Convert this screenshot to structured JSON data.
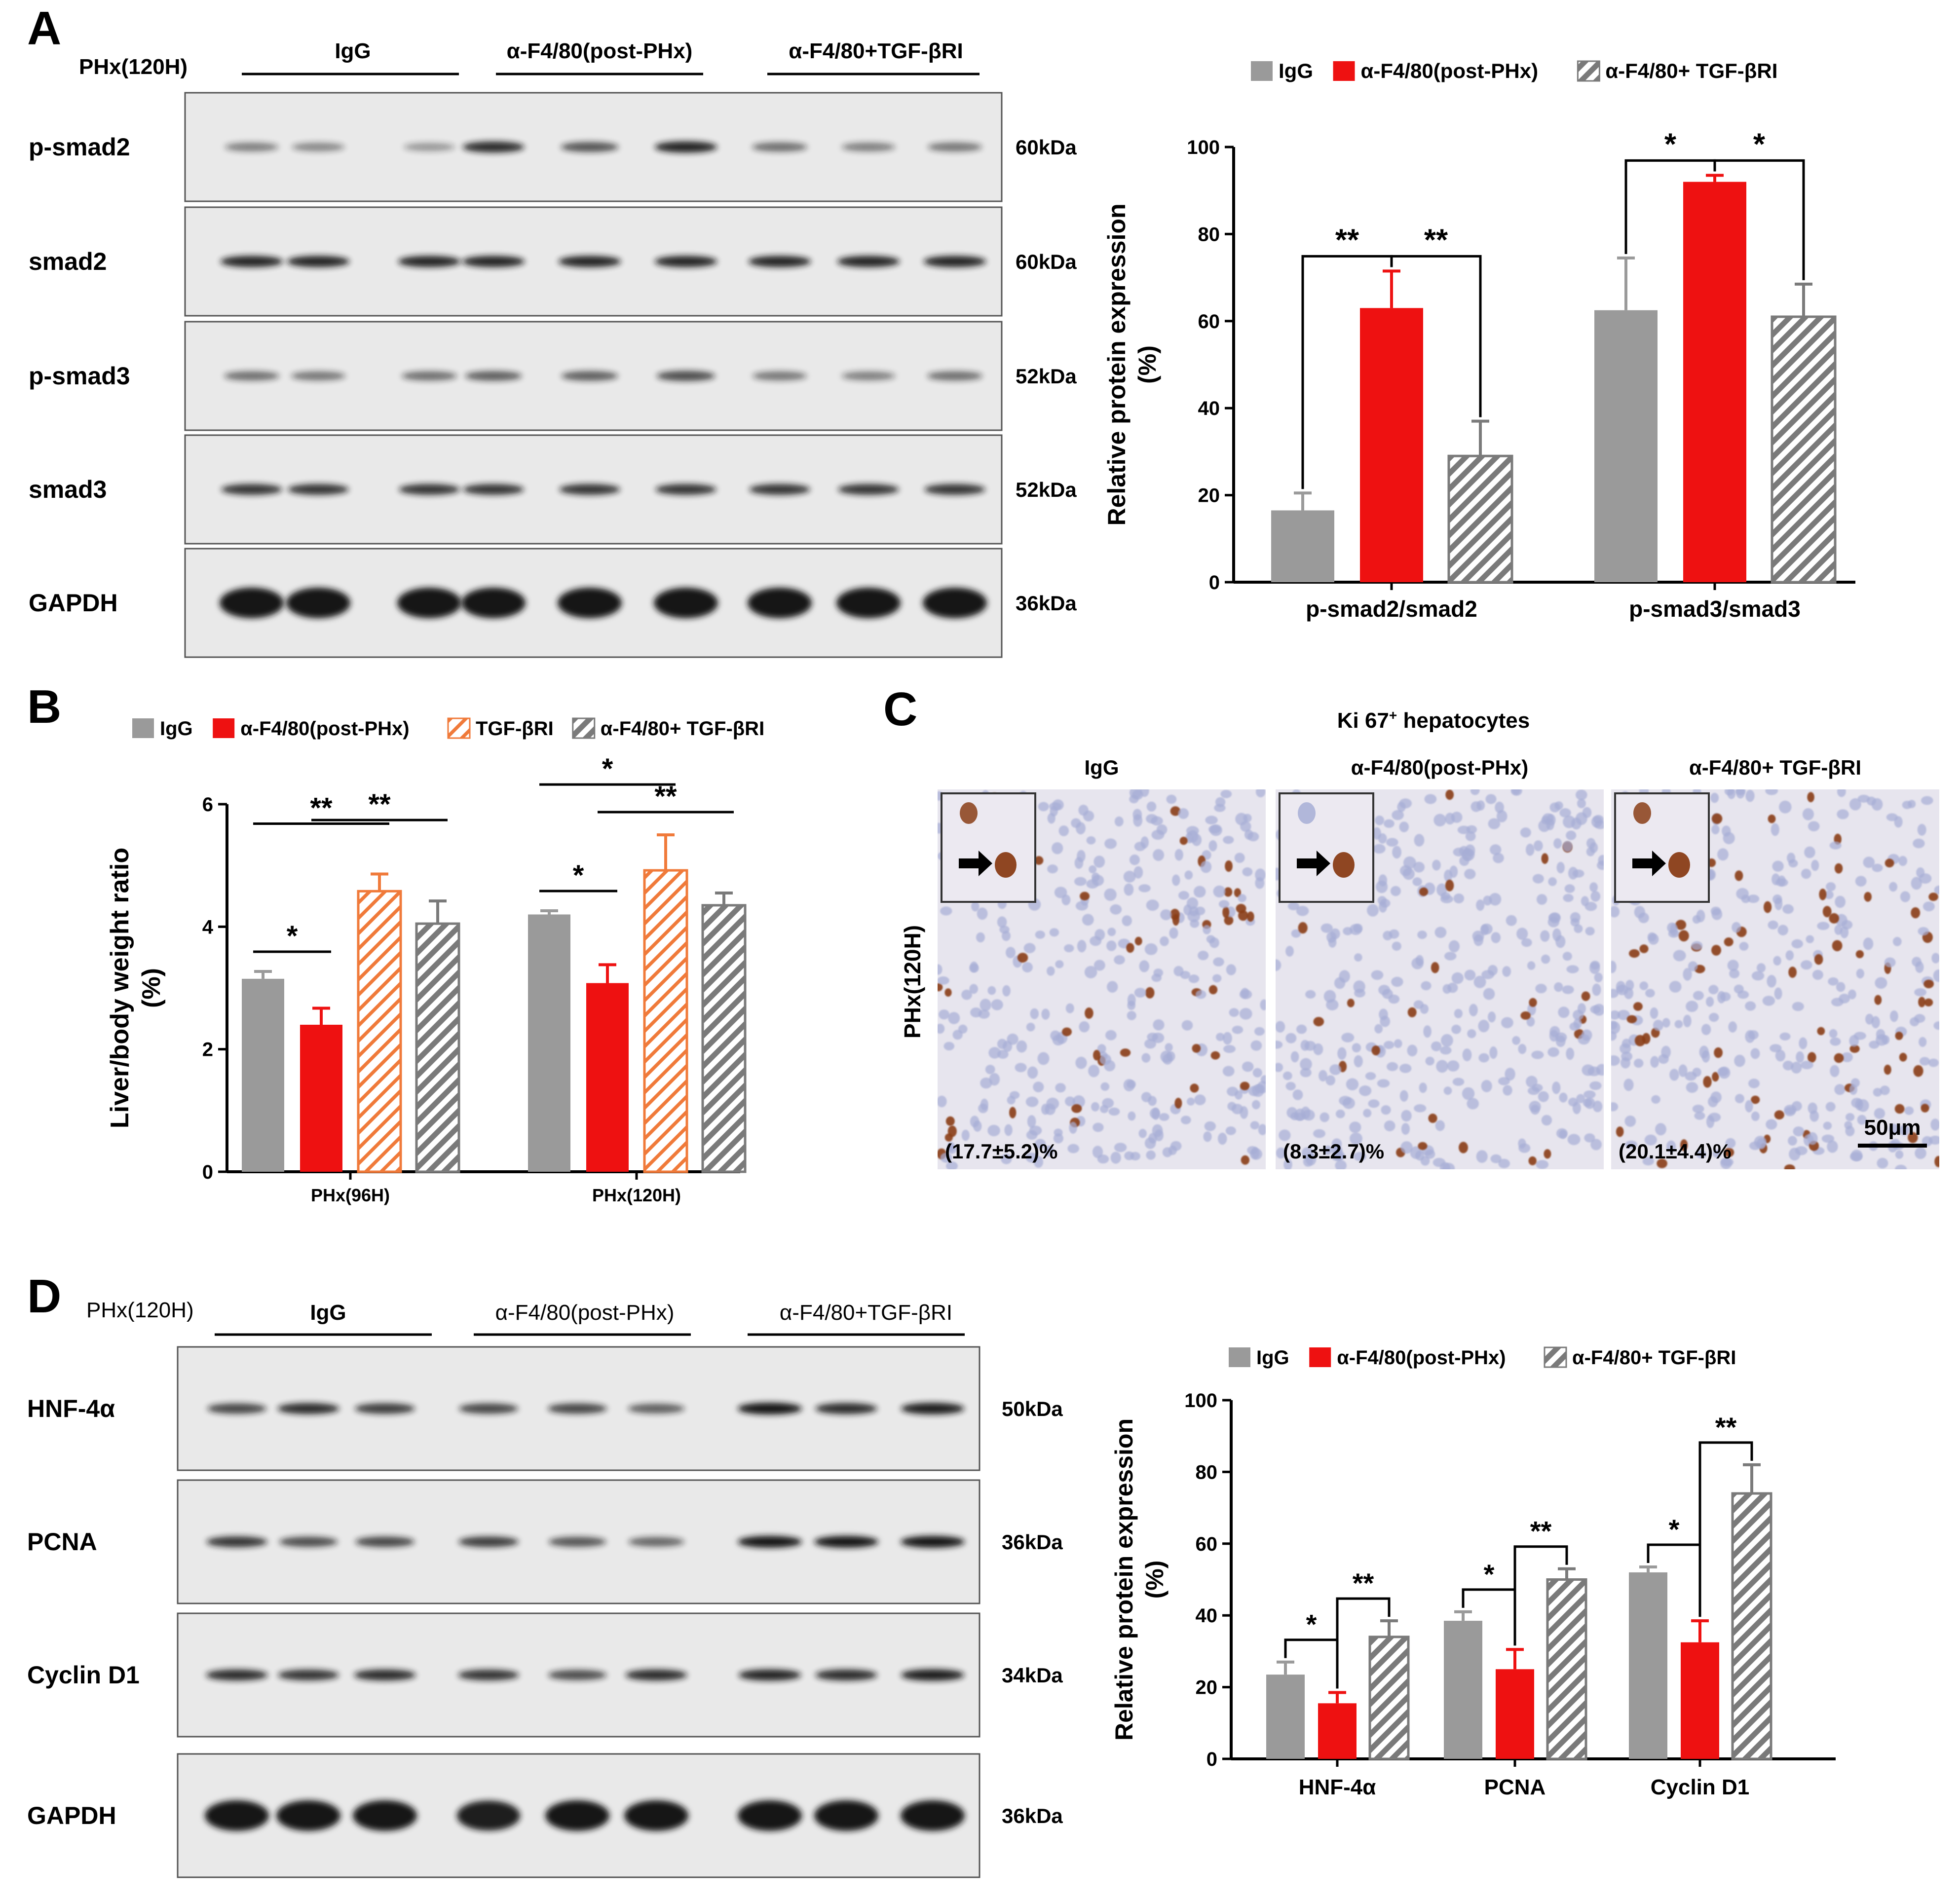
{
  "colors": {
    "igg": "#9a9a9a",
    "anti_f480": "#ee1111",
    "tgf": "#f07a3a",
    "combo": "#7a7a7a",
    "blot_bg": "#e9e9e9",
    "band": "#161616",
    "tissue": "#e7e5ee",
    "nucleus_brown": "#8a3d16",
    "nucleus_blue": "#a7aed6"
  },
  "panel_a": {
    "letter": "A",
    "condition_label": "PHx(120H)",
    "groups": [
      "IgG",
      "α-F4/80(post-PHx)",
      "α-F4/80+TGF-βRI"
    ],
    "blots": [
      {
        "name": "p-smad2",
        "kda": "60kDa",
        "intensity": [
          0.35,
          0.3,
          0.2,
          0.85,
          0.6,
          0.9,
          0.45,
          0.35,
          0.4
        ]
      },
      {
        "name": "smad2",
        "kda": "60kDa",
        "intensity": [
          0.9,
          0.9,
          0.9,
          0.9,
          0.9,
          0.9,
          0.9,
          0.9,
          0.9
        ]
      },
      {
        "name": "p-smad3",
        "kda": "52kDa",
        "intensity": [
          0.45,
          0.4,
          0.45,
          0.55,
          0.55,
          0.65,
          0.4,
          0.35,
          0.45
        ]
      },
      {
        "name": "smad3",
        "kda": "52kDa",
        "intensity": [
          0.8,
          0.8,
          0.8,
          0.8,
          0.8,
          0.8,
          0.8,
          0.8,
          0.8
        ]
      },
      {
        "name": "GAPDH",
        "kda": "36kDa",
        "intensity": [
          1,
          1,
          1,
          1,
          1,
          1,
          1,
          1,
          1
        ]
      }
    ]
  },
  "panel_b": {
    "letter": "B"
  },
  "panel_c": {
    "letter": "C",
    "title_main": "Ki 67",
    "title_sup": "+",
    "title_rest": " hepatocytes",
    "side_label": "PHx(120H)",
    "scale_label": "50μm",
    "images": [
      {
        "label": "IgG",
        "stat": "(17.7±5.2)%",
        "density": 0.13
      },
      {
        "label": "α-F4/80(post-PHx)",
        "stat": "(8.3±2.7)%",
        "density": 0.05
      },
      {
        "label": "α-F4/80+ TGF-βRI",
        "stat": "(20.1±4.4)%",
        "density": 0.16
      }
    ]
  },
  "panel_d": {
    "letter": "D",
    "condition_label": "PHx(120H)",
    "groups": [
      "IgG",
      "α-F4/80(post-PHx)",
      "α-F4/80+TGF-βRI"
    ],
    "blots": [
      {
        "name": "HNF-4α",
        "kda": "50kDa",
        "intensity": [
          0.7,
          0.85,
          0.75,
          0.7,
          0.7,
          0.55,
          1,
          0.85,
          0.95
        ]
      },
      {
        "name": "PCNA",
        "kda": "36kDa",
        "intensity": [
          0.8,
          0.65,
          0.7,
          0.75,
          0.6,
          0.5,
          1,
          1,
          1
        ]
      },
      {
        "name": "Cyclin D1",
        "kda": "34kDa",
        "intensity": [
          0.85,
          0.8,
          0.85,
          0.8,
          0.65,
          0.85,
          0.9,
          0.85,
          0.95
        ]
      },
      {
        "name": "GAPDH",
        "kda": "36kDa",
        "intensity": [
          1,
          1,
          1,
          0.95,
          1,
          1,
          1,
          1,
          1
        ]
      }
    ]
  },
  "chart_data": [
    {
      "id": "A-bar",
      "type": "bar",
      "categories": [
        "p-smad2/smad2",
        "p-smad3/smad3"
      ],
      "series": [
        {
          "name": "IgG",
          "values": [
            16.5,
            62.5
          ],
          "errors": [
            4,
            12
          ],
          "pattern": "solid",
          "color": "#9a9a9a"
        },
        {
          "name": "α-F4/80(post-PHx)",
          "values": [
            63,
            92
          ],
          "errors": [
            8.5,
            1.5
          ],
          "pattern": "solid",
          "color": "#ee1111"
        },
        {
          "name": "α-F4/80+ TGF-βRI",
          "values": [
            29,
            61
          ],
          "errors": [
            8,
            7.5
          ],
          "pattern": "hatch",
          "color": "#7a7a7a"
        }
      ],
      "ylabel": "Relative protein expression",
      "ylabel2": "(%)",
      "ylim": [
        0,
        100
      ],
      "yticks": [
        0,
        20,
        40,
        60,
        80,
        100
      ],
      "legend": "top",
      "significance": [
        {
          "category": 0,
          "from": 0,
          "to": 1,
          "label": "**"
        },
        {
          "category": 0,
          "from": 1,
          "to": 2,
          "label": "**"
        },
        {
          "category": 1,
          "from": 0,
          "to": 1,
          "label": "*"
        },
        {
          "category": 1,
          "from": 1,
          "to": 2,
          "label": "*"
        }
      ]
    },
    {
      "id": "B-bar",
      "type": "bar",
      "categories": [
        "PHx(96H)",
        "PHx(120H)"
      ],
      "series": [
        {
          "name": "IgG",
          "values": [
            3.15,
            4.2
          ],
          "errors": [
            0.12,
            0.06
          ],
          "pattern": "solid",
          "color": "#9a9a9a"
        },
        {
          "name": "α-F4/80(post-PHx)",
          "values": [
            2.4,
            3.08
          ],
          "errors": [
            0.27,
            0.3
          ],
          "pattern": "solid",
          "color": "#ee1111"
        },
        {
          "name": "TGF-βRI",
          "values": [
            4.58,
            4.92
          ],
          "errors": [
            0.28,
            0.58
          ],
          "pattern": "hatch-open",
          "color": "#f07a3a"
        },
        {
          "name": "α-F4/80+ TGF-βRI",
          "values": [
            4.05,
            4.35
          ],
          "errors": [
            0.37,
            0.2
          ],
          "pattern": "hatch",
          "color": "#7a7a7a"
        }
      ],
      "ylabel": "Liver/body weight ratio",
      "ylabel2": "(%)",
      "ylim": [
        0,
        6
      ],
      "yticks": [
        0,
        2,
        4,
        6
      ],
      "legend": "top",
      "significance": [
        {
          "category": 0,
          "from": 0,
          "to": 1,
          "label": "*"
        },
        {
          "category": 0,
          "from": 0,
          "to": 2,
          "label": "**"
        },
        {
          "category": 0,
          "from": 1,
          "to": 3,
          "label": "**"
        },
        {
          "category": 1,
          "from": 0,
          "to": 1,
          "label": "*"
        },
        {
          "category": 1,
          "from": 0,
          "to": 2,
          "label": "*"
        },
        {
          "category": 1,
          "from": 1,
          "to": 3,
          "label": "**"
        }
      ]
    },
    {
      "id": "D-bar",
      "type": "bar",
      "categories": [
        "HNF-4α",
        "PCNA",
        "Cyclin D1"
      ],
      "series": [
        {
          "name": "IgG",
          "values": [
            23.5,
            38.5,
            52
          ],
          "errors": [
            3.5,
            2.5,
            1.5
          ],
          "pattern": "solid",
          "color": "#9a9a9a"
        },
        {
          "name": "α-F4/80(post-PHx)",
          "values": [
            15.5,
            25,
            32.5
          ],
          "errors": [
            3,
            5.5,
            6
          ],
          "pattern": "solid",
          "color": "#ee1111"
        },
        {
          "name": "α-F4/80+ TGF-βRI",
          "values": [
            34,
            50,
            74
          ],
          "errors": [
            4.5,
            3,
            8
          ],
          "pattern": "hatch",
          "color": "#7a7a7a"
        }
      ],
      "ylabel": "Relative protein expression",
      "ylabel2": "(%)",
      "ylim": [
        0,
        100
      ],
      "yticks": [
        0,
        20,
        40,
        60,
        80,
        100
      ],
      "legend": "top",
      "significance": [
        {
          "category": 0,
          "from": 0,
          "to": 1,
          "label": "*"
        },
        {
          "category": 0,
          "from": 1,
          "to": 2,
          "label": "**"
        },
        {
          "category": 1,
          "from": 0,
          "to": 1,
          "label": "*"
        },
        {
          "category": 1,
          "from": 1,
          "to": 2,
          "label": "**"
        },
        {
          "category": 2,
          "from": 0,
          "to": 1,
          "label": "*"
        },
        {
          "category": 2,
          "from": 1,
          "to": 2,
          "label": "**"
        }
      ]
    }
  ]
}
